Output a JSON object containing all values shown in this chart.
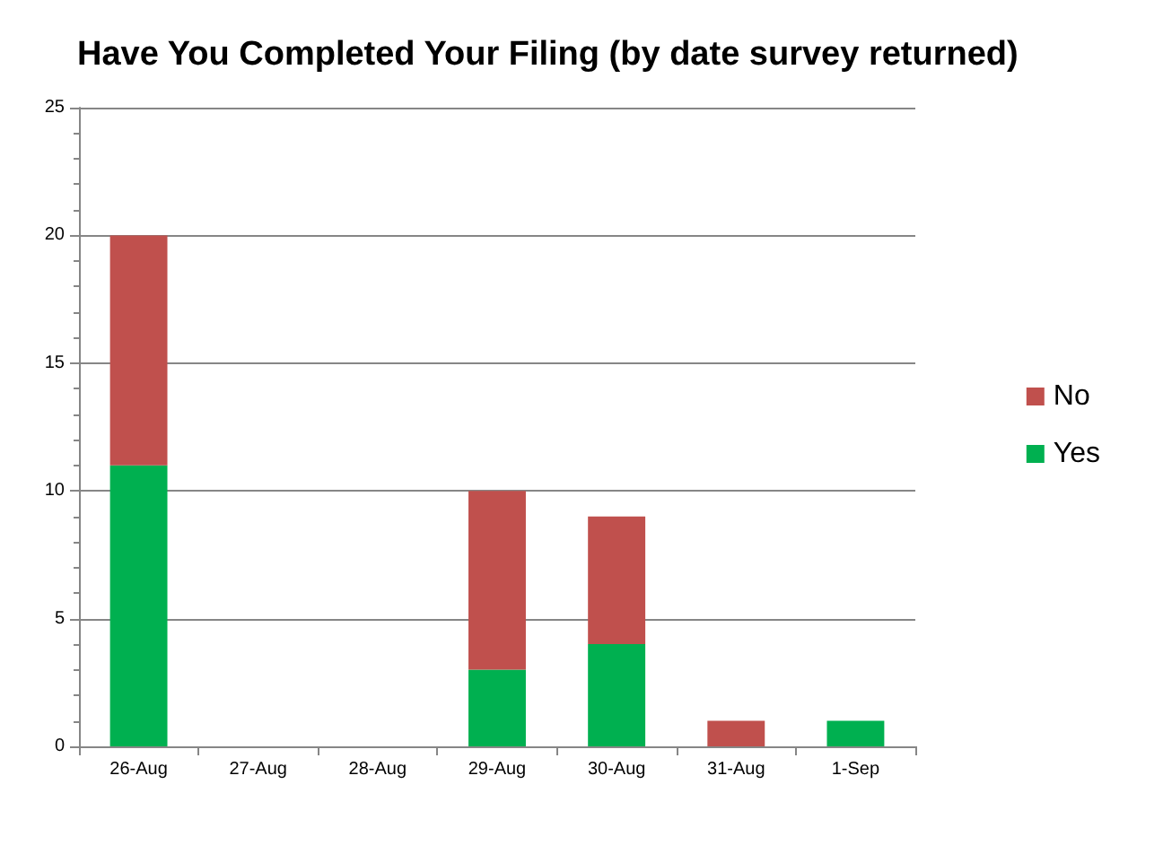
{
  "chart_data": {
    "type": "bar",
    "title": "Have You Completed Your Filing (by date survey returned)",
    "stacked": true,
    "categories": [
      "26-Aug",
      "27-Aug",
      "28-Aug",
      "29-Aug",
      "30-Aug",
      "31-Aug",
      "1-Sep"
    ],
    "series": [
      {
        "name": "Yes",
        "color": "#00b050",
        "values": [
          11,
          0,
          0,
          3,
          4,
          0,
          1
        ]
      },
      {
        "name": "No",
        "color": "#c0504d",
        "values": [
          9,
          0,
          0,
          7,
          5,
          1,
          0
        ]
      }
    ],
    "ylim": [
      0,
      25
    ],
    "yticks": [
      0,
      5,
      10,
      15,
      20,
      25
    ],
    "grid": "y",
    "legend": "right"
  }
}
